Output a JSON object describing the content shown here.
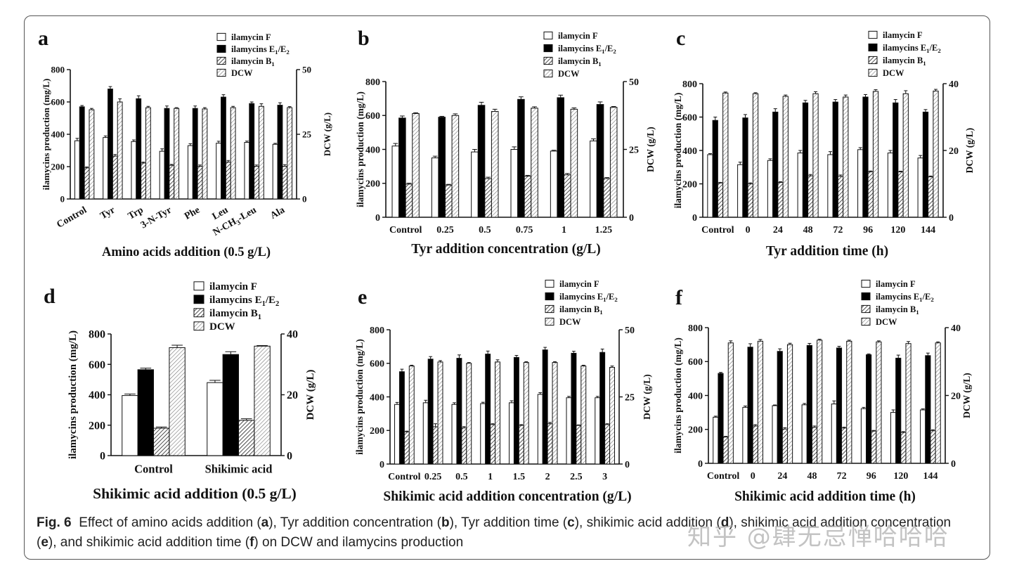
{
  "figure": {
    "caption_label": "Fig. 6",
    "caption_parts": [
      {
        "t": "Effect of amino acids addition (",
        "b": false
      },
      {
        "t": "a",
        "b": true
      },
      {
        "t": "), Tyr addition concentration (",
        "b": false
      },
      {
        "t": "b",
        "b": true
      },
      {
        "t": "), Tyr addition time (",
        "b": false
      },
      {
        "t": "c",
        "b": true
      },
      {
        "t": "), shikimic acid addition (",
        "b": false
      },
      {
        "t": "d",
        "b": true
      },
      {
        "t": "), shikimic acid addition concentration (",
        "b": false
      },
      {
        "t": "e",
        "b": true
      },
      {
        "t": "), and shikimic acid addition time (",
        "b": false
      },
      {
        "t": "f",
        "b": true
      },
      {
        "t": ") on DCW and ilamycins production",
        "b": false
      }
    ],
    "watermark": "知乎 @肆无忌惮哈哈哈"
  },
  "chart_data": [
    {
      "panel": "a",
      "type": "bar",
      "xlabel": "Amino acids addition (0.5 g/L)",
      "ylabel": "ilamycins production (mg/L)",
      "y2label": "DCW (g/L)",
      "ylim": [
        0,
        800
      ],
      "yticks": [
        0,
        200,
        400,
        600,
        800
      ],
      "y2lim": [
        0,
        50
      ],
      "y2ticks": [
        0,
        25,
        50
      ],
      "categories": [
        "Control",
        "Tyr",
        "Trp",
        "3-N-Tyr",
        "Phe",
        "Leu",
        "N-CH3-Leu",
        "Ala"
      ],
      "rotate_labels": true,
      "series": [
        {
          "name": "ilamycin F",
          "values": [
            360,
            380,
            355,
            295,
            330,
            345,
            350,
            338
          ],
          "errors": [
            15,
            10,
            10,
            15,
            12,
            12,
            8,
            6
          ]
        },
        {
          "name": "ilamycins E1/E2",
          "values": [
            570,
            680,
            620,
            560,
            560,
            630,
            590,
            580
          ],
          "errors": [
            8,
            15,
            18,
            15,
            15,
            15,
            10,
            15
          ]
        },
        {
          "name": "ilamycin B1",
          "values": [
            192,
            265,
            222,
            208,
            202,
            228,
            202,
            202
          ],
          "errors": [
            6,
            10,
            6,
            6,
            8,
            10,
            8,
            10
          ]
        },
        {
          "name": "DCW",
          "axis": "right",
          "values": [
            34.5,
            37.5,
            35.3,
            35.0,
            34.8,
            35.3,
            35.8,
            35.3
          ],
          "errors": [
            0.5,
            1.2,
            0.5,
            0.3,
            0.5,
            0.5,
            1.0,
            0.4
          ]
        }
      ]
    },
    {
      "panel": "b",
      "type": "bar",
      "xlabel": "Tyr addition concentration (g/L)",
      "ylabel": "ilamycins production (mg/L)",
      "y2label": "DCW (g/L)",
      "ylim": [
        0,
        800
      ],
      "yticks": [
        0,
        200,
        400,
        600,
        800
      ],
      "y2lim": [
        0,
        50
      ],
      "y2ticks": [
        0,
        25,
        50
      ],
      "categories": [
        "Control",
        "0.25",
        "0.5",
        "0.75",
        "1",
        "1.25"
      ],
      "series": [
        {
          "name": "ilamycin F",
          "values": [
            420,
            350,
            385,
            400,
            390,
            450
          ],
          "errors": [
            15,
            10,
            15,
            15,
            5,
            12
          ]
        },
        {
          "name": "ilamycins E1/E2",
          "values": [
            585,
            590,
            660,
            695,
            705,
            665
          ],
          "errors": [
            12,
            5,
            18,
            15,
            15,
            15
          ]
        },
        {
          "name": "ilamycin B1",
          "values": [
            195,
            190,
            228,
            242,
            250,
            228
          ],
          "errors": [
            6,
            4,
            8,
            5,
            8,
            6
          ]
        },
        {
          "name": "DCW",
          "axis": "right",
          "values": [
            38.2,
            37.5,
            39.0,
            40.2,
            39.8,
            40.5
          ],
          "errors": [
            0.3,
            0.6,
            0.8,
            0.5,
            0.5,
            0.3
          ]
        }
      ]
    },
    {
      "panel": "c",
      "type": "bar",
      "xlabel": "Tyr addition time (h)",
      "ylabel": "ilamycins production (mg/L)",
      "y2label": "DCW (g/L)",
      "ylim": [
        0,
        800
      ],
      "yticks": [
        0,
        200,
        400,
        600,
        800
      ],
      "y2lim": [
        0,
        40
      ],
      "y2ticks": [
        0,
        20,
        40
      ],
      "categories": [
        "Control",
        "0",
        "24",
        "48",
        "72",
        "96",
        "120",
        "144"
      ],
      "series": [
        {
          "name": "ilamycin F",
          "values": [
            375,
            315,
            340,
            385,
            375,
            405,
            385,
            355
          ],
          "errors": [
            6,
            15,
            10,
            15,
            18,
            12,
            15,
            15
          ]
        },
        {
          "name": "ilamycins E1/E2",
          "values": [
            580,
            595,
            630,
            685,
            690,
            720,
            685,
            630
          ],
          "errors": [
            20,
            20,
            20,
            15,
            15,
            15,
            20,
            15
          ]
        },
        {
          "name": "ilamycin B1",
          "values": [
            205,
            200,
            208,
            248,
            245,
            272,
            272,
            242
          ],
          "errors": [
            4,
            6,
            5,
            8,
            8,
            5,
            4,
            5
          ]
        },
        {
          "name": "DCW",
          "axis": "right",
          "values": [
            37.2,
            37.0,
            36.2,
            37.0,
            36.0,
            37.7,
            37.0,
            37.8
          ],
          "errors": [
            0.3,
            0.3,
            0.4,
            0.6,
            0.6,
            0.5,
            0.9,
            0.5
          ]
        }
      ]
    },
    {
      "panel": "d",
      "type": "bar",
      "xlabel": "Shikimic acid addition (0.5 g/L)",
      "ylabel": "ilamycins production (mg/L)",
      "y2label": "DCW (g/L)",
      "ylim": [
        0,
        800
      ],
      "yticks": [
        0,
        200,
        400,
        600,
        800
      ],
      "y2lim": [
        0,
        40
      ],
      "y2ticks": [
        0,
        20,
        40
      ],
      "categories": [
        "Control",
        "Shikimic acid"
      ],
      "series": [
        {
          "name": "ilamycin F",
          "values": [
            395,
            480
          ],
          "errors": [
            10,
            15
          ]
        },
        {
          "name": "ilamycins E1/E2",
          "values": [
            565,
            665
          ],
          "errors": [
            10,
            18
          ]
        },
        {
          "name": "ilamycin B1",
          "values": [
            180,
            232
          ],
          "errors": [
            8,
            10
          ]
        },
        {
          "name": "DCW",
          "axis": "right",
          "values": [
            35.5,
            36.0
          ],
          "errors": [
            0.8,
            0.2
          ]
        }
      ]
    },
    {
      "panel": "e",
      "type": "bar",
      "xlabel": "Shikimic acid addition concentration (g/L)",
      "ylabel": "ilamycins production (mg/L)",
      "y2label": "DCW (g/L)",
      "ylim": [
        0,
        800
      ],
      "yticks": [
        0,
        200,
        400,
        600,
        800
      ],
      "y2lim": [
        0,
        50
      ],
      "y2ticks": [
        0,
        25,
        50
      ],
      "categories": [
        "Control",
        "0.25",
        "0.5",
        "1",
        "1.5",
        "2",
        "2.5",
        "3"
      ],
      "series": [
        {
          "name": "ilamycin F",
          "values": [
            355,
            365,
            355,
            360,
            365,
            415,
            395,
            395
          ],
          "errors": [
            12,
            15,
            10,
            8,
            12,
            10,
            8,
            8
          ]
        },
        {
          "name": "ilamycins E1/E2",
          "values": [
            550,
            625,
            630,
            655,
            635,
            680,
            660,
            665
          ],
          "errors": [
            15,
            15,
            20,
            18,
            12,
            15,
            12,
            20
          ]
        },
        {
          "name": "ilamycin B1",
          "values": [
            192,
            222,
            215,
            235,
            230,
            240,
            230,
            235
          ],
          "errors": [
            4,
            18,
            8,
            5,
            5,
            8,
            3,
            5
          ]
        },
        {
          "name": "DCW",
          "axis": "right",
          "values": [
            36.5,
            38.0,
            37.5,
            38.0,
            37.8,
            37.8,
            36.5,
            36.0
          ],
          "errors": [
            0.3,
            0.5,
            0.3,
            0.8,
            0.3,
            0.3,
            0.3,
            0.5
          ]
        }
      ]
    },
    {
      "panel": "f",
      "type": "bar",
      "xlabel": "Shikimic acid addition time (h)",
      "ylabel": "ilamycins production (mg/L)",
      "y2label": "DCW (g/L)",
      "ylim": [
        0,
        800
      ],
      "yticks": [
        0,
        200,
        400,
        600,
        800
      ],
      "y2lim": [
        0,
        40
      ],
      "y2ticks": [
        0,
        20,
        40
      ],
      "categories": [
        "Control",
        "0",
        "24",
        "48",
        "72",
        "96",
        "120",
        "144"
      ],
      "series": [
        {
          "name": "ilamycin F",
          "values": [
            272,
            330,
            340,
            345,
            350,
            322,
            300,
            315
          ],
          "errors": [
            6,
            8,
            4,
            8,
            18,
            8,
            15,
            6
          ]
        },
        {
          "name": "ilamycins E1/E2",
          "values": [
            530,
            685,
            660,
            695,
            680,
            640,
            620,
            635
          ],
          "errors": [
            6,
            20,
            15,
            12,
            10,
            5,
            18,
            15
          ]
        },
        {
          "name": "ilamycin B1",
          "values": [
            155,
            220,
            202,
            212,
            208,
            190,
            182,
            192
          ],
          "errors": [
            4,
            8,
            8,
            8,
            5,
            4,
            5,
            6
          ]
        },
        {
          "name": "DCW",
          "axis": "right",
          "values": [
            35.5,
            36.0,
            35.0,
            36.3,
            36.0,
            35.8,
            35.3,
            35.5
          ],
          "errors": [
            0.6,
            0.5,
            0.4,
            0.3,
            0.3,
            0.3,
            0.6,
            0.3
          ]
        }
      ]
    }
  ]
}
